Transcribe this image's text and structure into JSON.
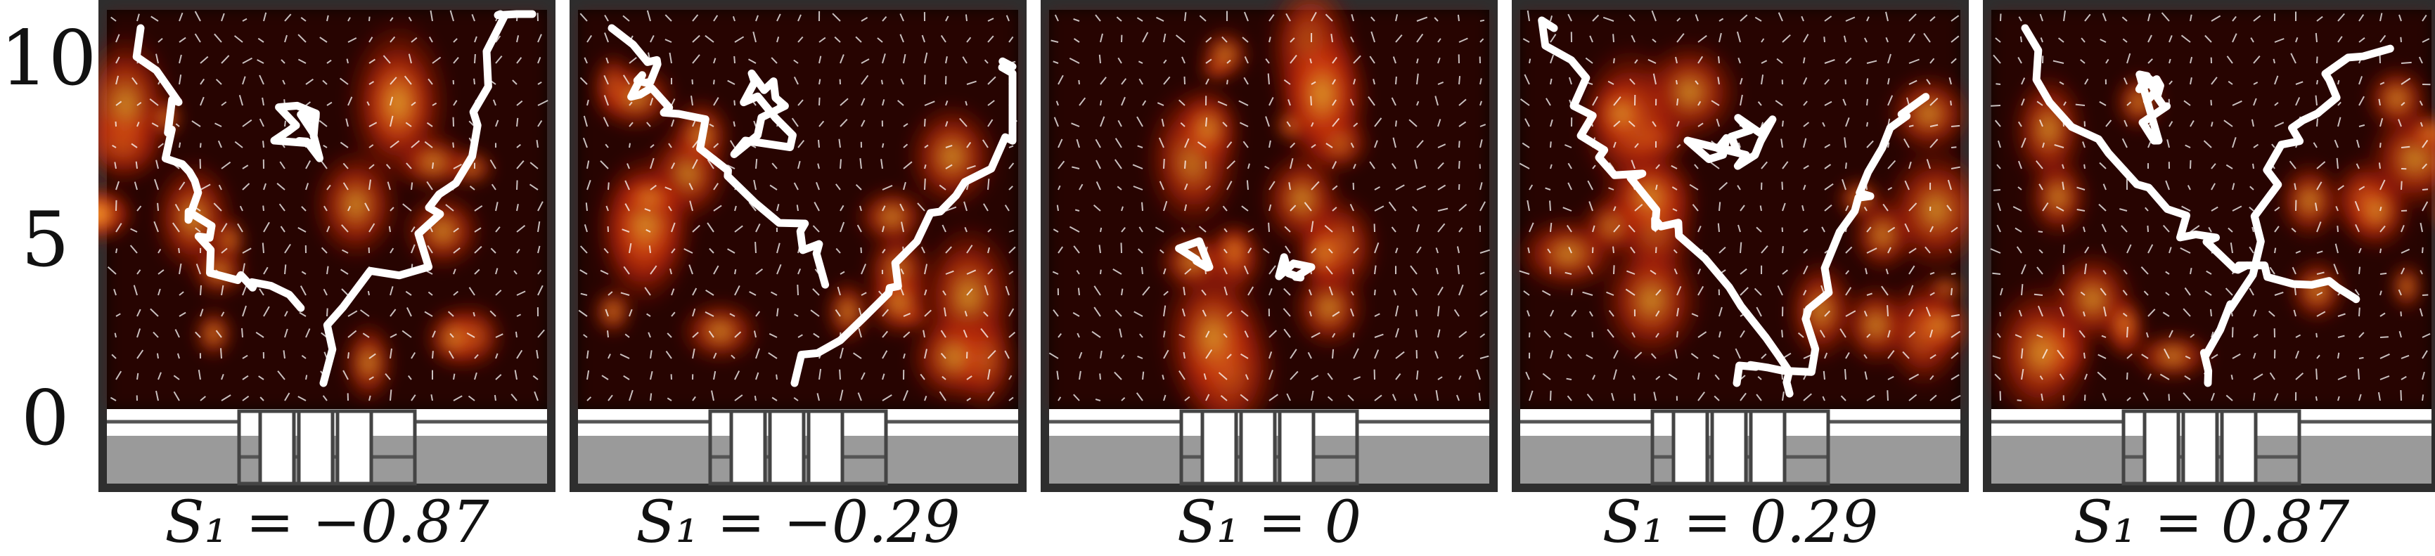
{
  "y_axis": {
    "ticks": [
      "10",
      "5",
      "0"
    ]
  },
  "panels": [
    {
      "label": "S₁ = −0.87",
      "value": -0.87
    },
    {
      "label": "S₁ = −0.29",
      "value": -0.29
    },
    {
      "label": "S₁ = 0",
      "value": 0
    },
    {
      "label": "S₁ = 0.29",
      "value": 0.29
    },
    {
      "label": "S₁ = 0.87",
      "value": 0.87
    }
  ],
  "colors": {
    "background": "#0b0202",
    "heat_low": "#7a0b05",
    "heat_mid": "#e83a10",
    "heat_high": "#ffd33a",
    "contour": "#ffffff",
    "nozzle_gray": "#9a9a9a",
    "frame": "#2e2e2e"
  }
}
